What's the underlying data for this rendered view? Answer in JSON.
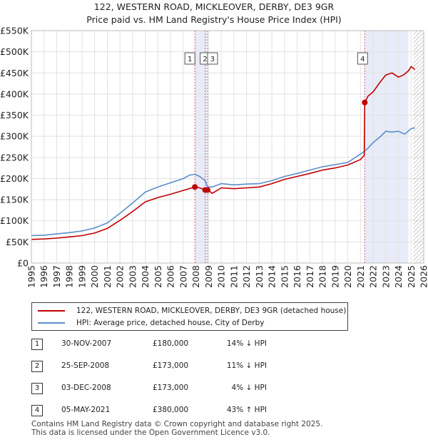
{
  "title_line1": "122, WESTERN ROAD, MICKLEOVER, DERBY, DE3 9GR",
  "title_line2": "Price paid vs. HM Land Registry's House Price Index (HPI)",
  "chart_data": {
    "type": "line",
    "title": "122, WESTERN ROAD, MICKLEOVER, DERBY, DE3 9GR — Price paid vs. HM Land Registry's House Price Index (HPI)",
    "xlabel": "",
    "ylabel": "",
    "xlim": [
      1995,
      2026
    ],
    "ylim": [
      0,
      550000
    ],
    "x_ticks": [
      1995,
      1996,
      1997,
      1998,
      1999,
      2000,
      2001,
      2002,
      2003,
      2004,
      2005,
      2006,
      2007,
      2008,
      2009,
      2010,
      2011,
      2012,
      2013,
      2014,
      2015,
      2016,
      2017,
      2018,
      2019,
      2020,
      2021,
      2022,
      2023,
      2024,
      2025,
      2026
    ],
    "y_ticks": [
      {
        "value": 0,
        "label": "£0"
      },
      {
        "value": 50000,
        "label": "£50K"
      },
      {
        "value": 100000,
        "label": "£100K"
      },
      {
        "value": 150000,
        "label": "£150K"
      },
      {
        "value": 200000,
        "label": "£200K"
      },
      {
        "value": 250000,
        "label": "£250K"
      },
      {
        "value": 300000,
        "label": "£300K"
      },
      {
        "value": 350000,
        "label": "£350K"
      },
      {
        "value": 400000,
        "label": "£400K"
      },
      {
        "value": 450000,
        "label": "£450K"
      },
      {
        "value": 500000,
        "label": "£500K"
      },
      {
        "value": 550000,
        "label": "£550K"
      }
    ],
    "grid": true,
    "shaded_ranges": [
      {
        "from": 2007.917,
        "to": 2008.92
      },
      {
        "from": 2021.34,
        "to": 2024.8
      }
    ],
    "series": [
      {
        "name": "HPI: Average price, detached house, City of Derby",
        "color": "#5b8ec9",
        "x": [
          1995,
          1996,
          1997,
          1998,
          1999,
          2000,
          2001,
          2002,
          2003,
          2004,
          2005,
          2006,
          2007,
          2007.5,
          2007.917,
          2008.3,
          2008.73,
          2008.92,
          2009.3,
          2010,
          2011,
          2012,
          2013,
          2014,
          2015,
          2016,
          2017,
          2018,
          2019,
          2020,
          2021,
          2021.34,
          2021.6,
          2022,
          2022.6,
          2023,
          2023.5,
          2024,
          2024.5,
          2025,
          2025.3
        ],
        "values": [
          65000,
          66000,
          69000,
          72000,
          76000,
          83000,
          95000,
          118000,
          142000,
          168000,
          180000,
          190000,
          200000,
          208000,
          210000,
          205000,
          195000,
          180000,
          180000,
          188000,
          185000,
          187000,
          188000,
          195000,
          205000,
          212000,
          220000,
          228000,
          233000,
          238000,
          258000,
          265000,
          272000,
          285000,
          300000,
          312000,
          310000,
          312000,
          305000,
          318000,
          320000
        ]
      },
      {
        "name": "122, WESTERN ROAD, MICKLEOVER, DERBY, DE3 9GR (detached house)",
        "color": "#c00000",
        "x": [
          1995,
          1996,
          1997,
          1998,
          1999,
          2000,
          2001,
          2002,
          2003,
          2004,
          2005,
          2006,
          2007,
          2007.917,
          2008.3,
          2008.73,
          2008.92,
          2009.3,
          2010,
          2011,
          2012,
          2013,
          2014,
          2015,
          2016,
          2017,
          2018,
          2019,
          2020,
          2021,
          2021.3,
          2021.34,
          2021.6,
          2022,
          2022.6,
          2023,
          2023.5,
          2024,
          2024.4,
          2024.8,
          2025,
          2025.3
        ],
        "values": [
          56000,
          57000,
          59000,
          62000,
          65000,
          71000,
          82000,
          101000,
          122000,
          145000,
          155000,
          163000,
          172000,
          180000,
          178000,
          173000,
          173000,
          165000,
          178000,
          176000,
          178000,
          180000,
          188000,
          198000,
          205000,
          212000,
          220000,
          225000,
          232000,
          245000,
          255000,
          380000,
          395000,
          405000,
          430000,
          445000,
          450000,
          440000,
          445000,
          455000,
          465000,
          458000
        ]
      }
    ],
    "sales": [
      {
        "label": "1",
        "x": 2007.917,
        "price": 180000
      },
      {
        "label": "2",
        "x": 2008.73,
        "price": 173000
      },
      {
        "label": "3",
        "x": 2008.92,
        "price": 173000
      },
      {
        "label": "4",
        "x": 2021.34,
        "price": 380000
      }
    ],
    "future_hatch_from": 2025.17
  },
  "legend": {
    "property_label": "122, WESTERN ROAD, MICKLEOVER, DERBY, DE3 9GR (detached house)",
    "hpi_label": "HPI: Average price, detached house, City of Derby"
  },
  "transactions": [
    {
      "num": "1",
      "date": "30-NOV-2007",
      "price": "£180,000",
      "hpi": "14% ↓ HPI"
    },
    {
      "num": "2",
      "date": "25-SEP-2008",
      "price": "£173,000",
      "hpi": "11% ↓ HPI"
    },
    {
      "num": "3",
      "date": "03-DEC-2008",
      "price": "£173,000",
      "hpi": "4% ↓ HPI"
    },
    {
      "num": "4",
      "date": "05-MAY-2021",
      "price": "£380,000",
      "hpi": "43% ↑ HPI"
    }
  ],
  "footer_line1": "Contains HM Land Registry data © Crown copyright and database right 2025.",
  "footer_line2": "This data is licensed under the Open Government Licence v3.0."
}
